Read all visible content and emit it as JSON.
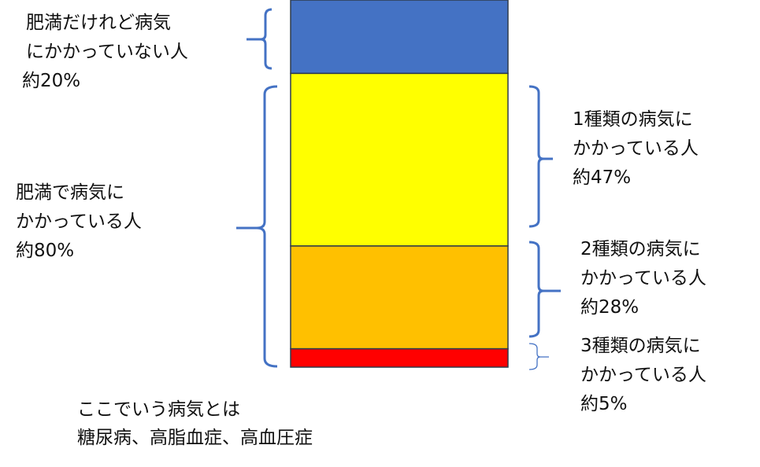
{
  "chart_data": {
    "type": "bar",
    "stacked": true,
    "segments": [
      {
        "label": "肥満だけれど病気にかかっていない人",
        "value": 20,
        "color": "#4472C4"
      },
      {
        "label": "1種類の病気にかかっている人",
        "value": 47,
        "color": "#FFFF00"
      },
      {
        "label": "2種類の病気にかかっている人",
        "value": 28,
        "color": "#FFC000"
      },
      {
        "label": "3種類の病気にかかっている人",
        "value": 5,
        "color": "#FF0000"
      }
    ]
  },
  "labels": {
    "no_disease": [
      "肥満だけれど病気",
      "にかかっていない人",
      "約20%"
    ],
    "with_disease": [
      "肥満で病気に",
      "かかっている人",
      "約80%"
    ],
    "one": [
      "1種類の病気に",
      "かかっている人",
      "約47%"
    ],
    "two": [
      "2種類の病気に",
      "かかっている人",
      "約28%"
    ],
    "three": [
      "3種類の病気に",
      "かかっている人",
      "約5%"
    ],
    "note": [
      "ここでいう病気とは",
      "糖尿病、高脂血症、高血圧症"
    ]
  },
  "colors": {
    "brace": "#4472C4",
    "border": "#2F3B4A"
  }
}
